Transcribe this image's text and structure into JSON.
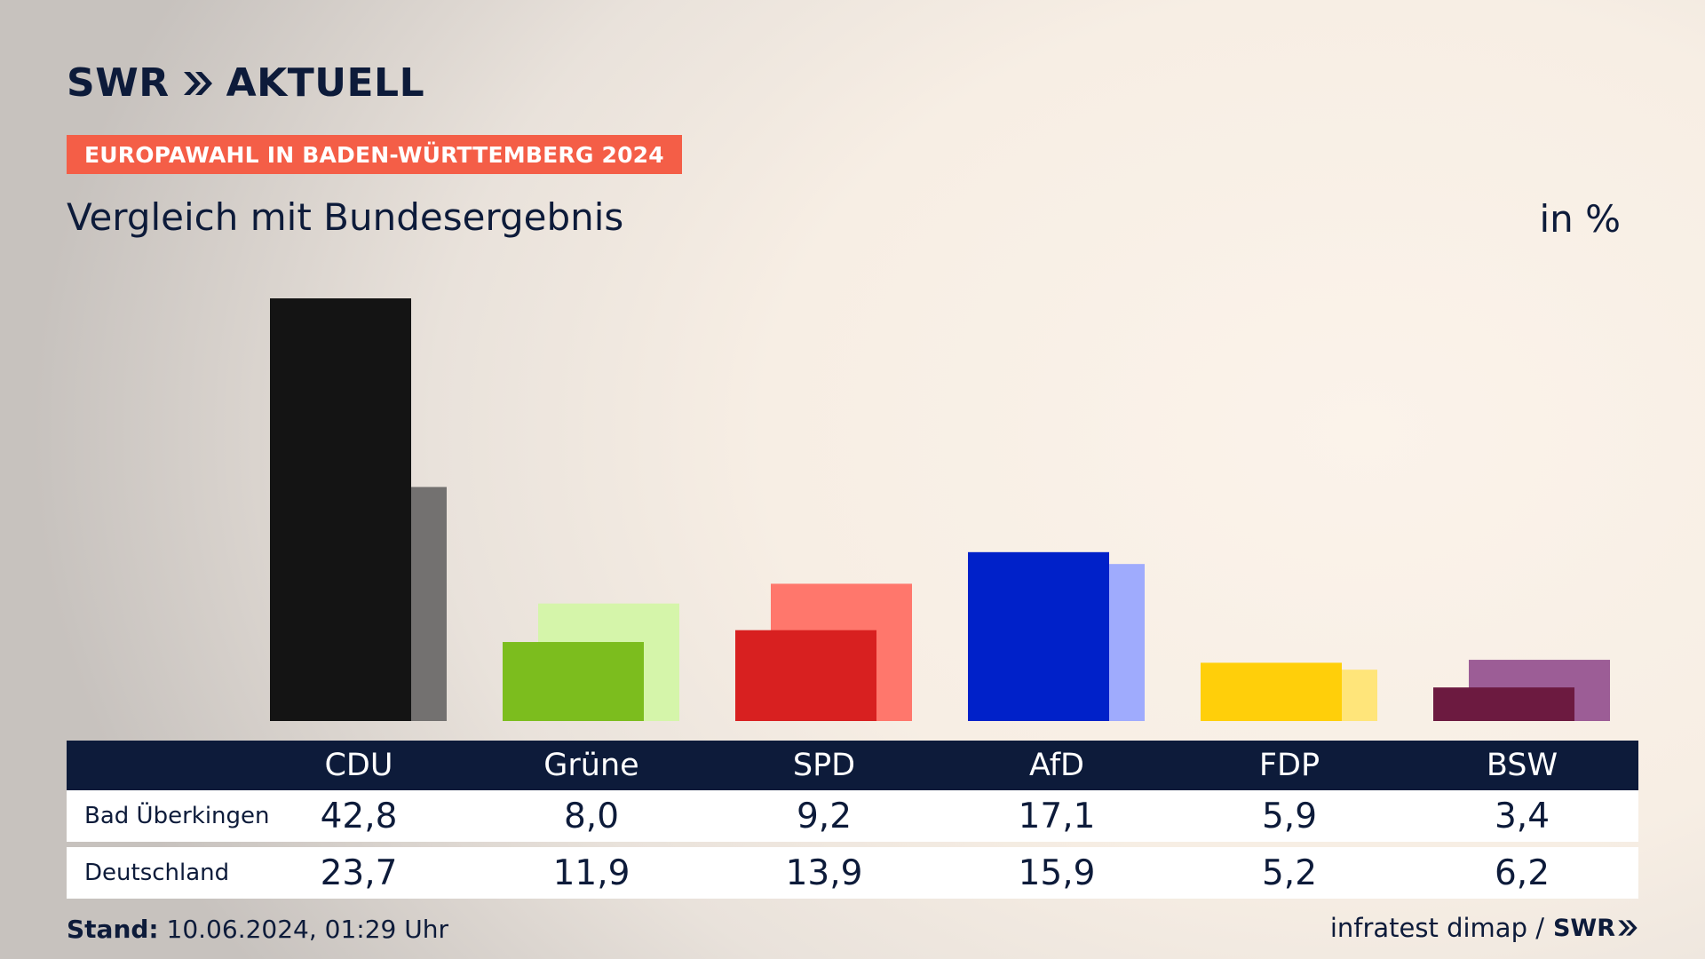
{
  "header": {
    "logo_primary": "SWR",
    "logo_secondary": "AKTUELL",
    "badge": "EUROPAWAHL IN BADEN-WÜRTTEMBERG 2024",
    "subtitle": "Vergleich mit Bundesergebnis",
    "unit": "in %"
  },
  "chart_data": {
    "type": "bar",
    "categories": [
      "CDU",
      "Grüne",
      "SPD",
      "AfD",
      "FDP",
      "BSW"
    ],
    "series": [
      {
        "name": "Bad Überkingen",
        "values": [
          42.8,
          8.0,
          9.2,
          17.1,
          5.9,
          3.4
        ]
      },
      {
        "name": "Deutschland",
        "values": [
          23.7,
          11.9,
          13.9,
          15.9,
          5.2,
          6.2
        ]
      }
    ],
    "colors_primary": [
      "#141414",
      "#7cbd1e",
      "#d82020",
      "#0021c9",
      "#ffcf0a",
      "#6c1a40"
    ],
    "colors_secondary": [
      "#737170",
      "#d5f5aa",
      "#ff776c",
      "#9fabfd",
      "#ffe57a",
      "#9c5d96"
    ],
    "ylim": [
      0,
      42.8
    ],
    "grid": false
  },
  "table": {
    "headers": [
      "CDU",
      "Grüne",
      "SPD",
      "AfD",
      "FDP",
      "BSW"
    ],
    "rows": [
      {
        "label": "Bad Überkingen",
        "values": [
          "42,8",
          "8,0",
          "9,2",
          "17,1",
          "5,9",
          "3,4"
        ]
      },
      {
        "label": "Deutschland",
        "values": [
          "23,7",
          "11,9",
          "13,9",
          "15,9",
          "5,2",
          "6,2"
        ]
      }
    ]
  },
  "footer": {
    "stand_label": "Stand:",
    "stand_value": "10.06.2024, 01:29 Uhr",
    "source": "infratest dimap /",
    "source_logo": "SWR"
  }
}
